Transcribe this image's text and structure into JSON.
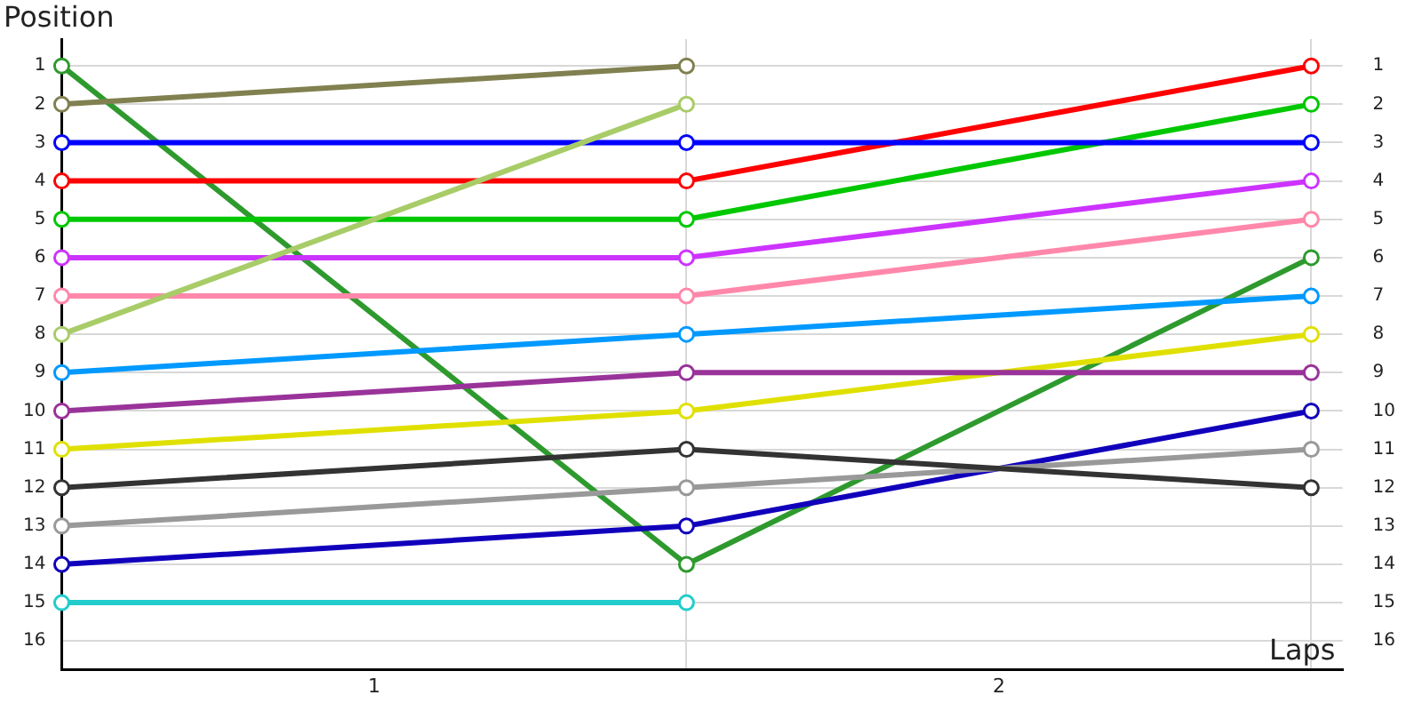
{
  "chart_data": {
    "type": "line",
    "xlabel": "Laps",
    "ylabel": "Position",
    "x": [
      0,
      1,
      2
    ],
    "xlim": [
      0,
      2.05
    ],
    "xticks": [
      {
        "value": 0,
        "label": null
      },
      {
        "value": 0.5,
        "label": "1"
      },
      {
        "value": 1,
        "label": null
      },
      {
        "value": 1.5,
        "label": "2"
      },
      {
        "value": 2,
        "label": null
      }
    ],
    "ylim": [
      16.75,
      0.3
    ],
    "yticks": [
      1,
      2,
      3,
      4,
      5,
      6,
      7,
      8,
      9,
      10,
      11,
      12,
      13,
      14,
      15,
      16
    ],
    "y2lim": [
      16.75,
      0.3
    ],
    "y2ticks": [
      1,
      2,
      3,
      4,
      5,
      6,
      7,
      8,
      9,
      10,
      11,
      12,
      13,
      14,
      15,
      16
    ],
    "grid": true,
    "legend": false,
    "marker": "circle",
    "line_style": "solid",
    "series": [
      {
        "color": "#808050",
        "values": [
          2,
          1,
          null
        ]
      },
      {
        "color": "#a8cc68",
        "values": [
          8,
          2,
          null
        ]
      },
      {
        "color": "#0000ff",
        "values": [
          3,
          3,
          3
        ]
      },
      {
        "color": "#ff0000",
        "values": [
          4,
          4,
          1
        ]
      },
      {
        "color": "#00c800",
        "values": [
          5,
          5,
          2
        ]
      },
      {
        "color": "#cc33ff",
        "values": [
          6,
          6,
          4
        ]
      },
      {
        "color": "#ff88aa",
        "values": [
          7,
          7,
          5
        ]
      },
      {
        "color": "#0099ff",
        "values": [
          9,
          8,
          7
        ]
      },
      {
        "color": "#993399",
        "values": [
          10,
          9,
          9
        ]
      },
      {
        "color": "#e0e000",
        "values": [
          11,
          10,
          8
        ]
      },
      {
        "color": "#333333",
        "values": [
          12,
          11,
          12
        ]
      },
      {
        "color": "#999999",
        "values": [
          13,
          12,
          11
        ]
      },
      {
        "color": "#1100bb",
        "values": [
          14,
          13,
          10
        ]
      },
      {
        "color": "#22cccc",
        "values": [
          15,
          15,
          null
        ]
      },
      {
        "color": "#2e9a2e",
        "values": [
          1,
          14,
          6
        ]
      }
    ]
  }
}
